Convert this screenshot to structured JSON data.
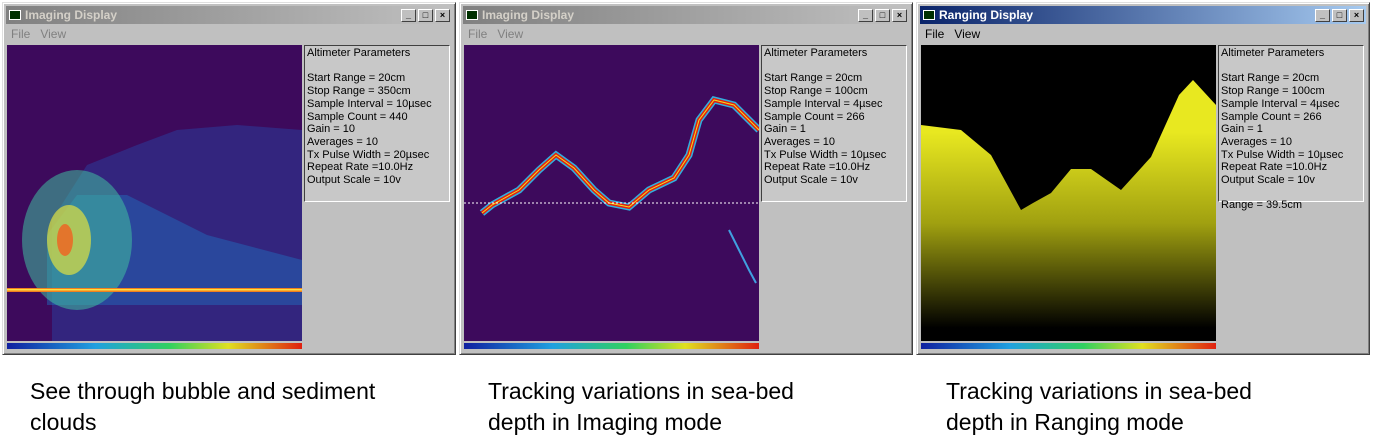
{
  "windows": [
    {
      "title": "Imaging Display",
      "menu": [
        "File",
        "View"
      ],
      "panel": {
        "heading": "Altimeter Parameters",
        "lines": [
          "Start Range = 20cm",
          "Stop Range = 350cm",
          "Sample Interval = 10µsec",
          "Sample Count = 440",
          "Gain = 10",
          "Averages = 10",
          "Tx Pulse Width = 20µsec",
          "Repeat Rate =10.0Hz",
          "Output Scale = 10v"
        ]
      },
      "caption": [
        "See through bubble and sediment",
        "clouds"
      ]
    },
    {
      "title": "Imaging Display",
      "menu": [
        "File",
        "View"
      ],
      "panel": {
        "heading": "Altimeter Parameters",
        "lines": [
          "Start Range = 20cm",
          "Stop Range = 100cm",
          "Sample Interval = 4µsec",
          "Sample Count = 266",
          "Gain = 1",
          "Averages = 10",
          "Tx Pulse Width = 10µsec",
          "Repeat Rate =10.0Hz",
          "Output Scale = 10v"
        ]
      },
      "caption": [
        "Tracking variations in sea-bed",
        "depth in Imaging mode"
      ]
    },
    {
      "title": "Ranging Display",
      "menu": [
        "File",
        "View"
      ],
      "panel": {
        "heading": "Altimeter Parameters",
        "lines": [
          "Start Range = 20cm",
          "Stop Range = 100cm",
          "Sample Interval = 4µsec",
          "Sample Count = 266",
          "Gain = 1",
          "Averages = 10",
          "Tx Pulse Width = 10µsec",
          "Repeat Rate =10.0Hz",
          "Output Scale = 10v"
        ],
        "extra": "Range = 39.5cm"
      },
      "caption": [
        "Tracking variations in sea-bed",
        "depth in Ranging mode"
      ]
    }
  ]
}
